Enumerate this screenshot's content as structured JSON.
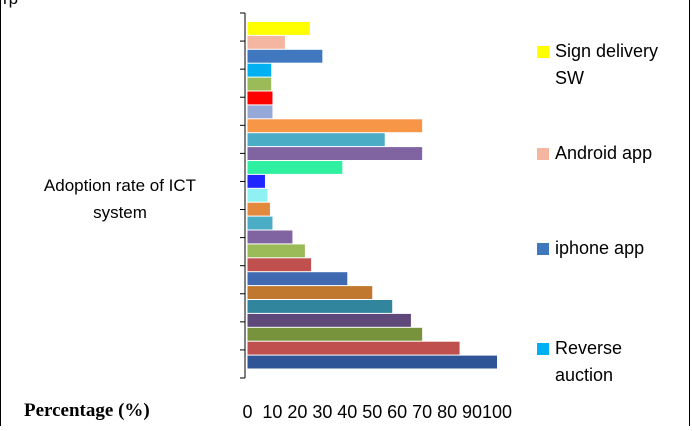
{
  "caption_fragment": "rp",
  "chart_data": {
    "type": "bar",
    "orientation": "horizontal",
    "ylabel": "Adoption rate of ICT system",
    "xlabel": "Percentage (%)",
    "xlim": [
      0,
      100
    ],
    "x_ticks": [
      "0",
      "10",
      "20",
      "30",
      "40",
      "50",
      "60",
      "70",
      "80",
      "90",
      "100"
    ],
    "grid": false,
    "legend_position": "right",
    "bars": [
      {
        "value": 100,
        "color": "#2f5597"
      },
      {
        "value": 85,
        "color": "#c0504d"
      },
      {
        "value": 70,
        "color": "#77933c"
      },
      {
        "value": 65.5,
        "color": "#5f497a"
      },
      {
        "value": 58,
        "color": "#31859c"
      },
      {
        "value": 50,
        "color": "#c0782f"
      },
      {
        "value": 40,
        "color": "#3f6ab2"
      },
      {
        "value": 25.5,
        "color": "#c0504d"
      },
      {
        "value": 23,
        "color": "#9bbb59"
      },
      {
        "value": 18,
        "color": "#8064a2"
      },
      {
        "value": 10,
        "color": "#4bacc6"
      },
      {
        "value": 9,
        "color": "#e3893d"
      },
      {
        "value": 8,
        "color": "#8ff1f1"
      },
      {
        "value": 7,
        "color": "#1f26ff"
      },
      {
        "value": 38,
        "color": "#2ef0a0"
      },
      {
        "value": 70,
        "color": "#8064a2"
      },
      {
        "value": 55,
        "color": "#4bacc6"
      },
      {
        "value": 70,
        "color": "#f79646"
      },
      {
        "value": 10,
        "color": "#95a8d8"
      },
      {
        "value": 10,
        "color": "#ff0000"
      },
      {
        "value": 9.5,
        "color": "#9bbb59"
      },
      {
        "value": 9.5,
        "color": "#00b0f0"
      },
      {
        "value": 30,
        "color": "#3f78bf"
      },
      {
        "value": 15,
        "color": "#f4b6a0"
      },
      {
        "value": 25,
        "color": "#ffff00"
      }
    ],
    "series": [
      {
        "name": "Sign delivery SW",
        "color": "#ffff00"
      },
      {
        "name": "Android app",
        "color": "#f4b6a0"
      },
      {
        "name": "iphone app",
        "color": "#3f78bf"
      },
      {
        "name": "Reverse auction",
        "color": "#00b0f0"
      }
    ]
  }
}
